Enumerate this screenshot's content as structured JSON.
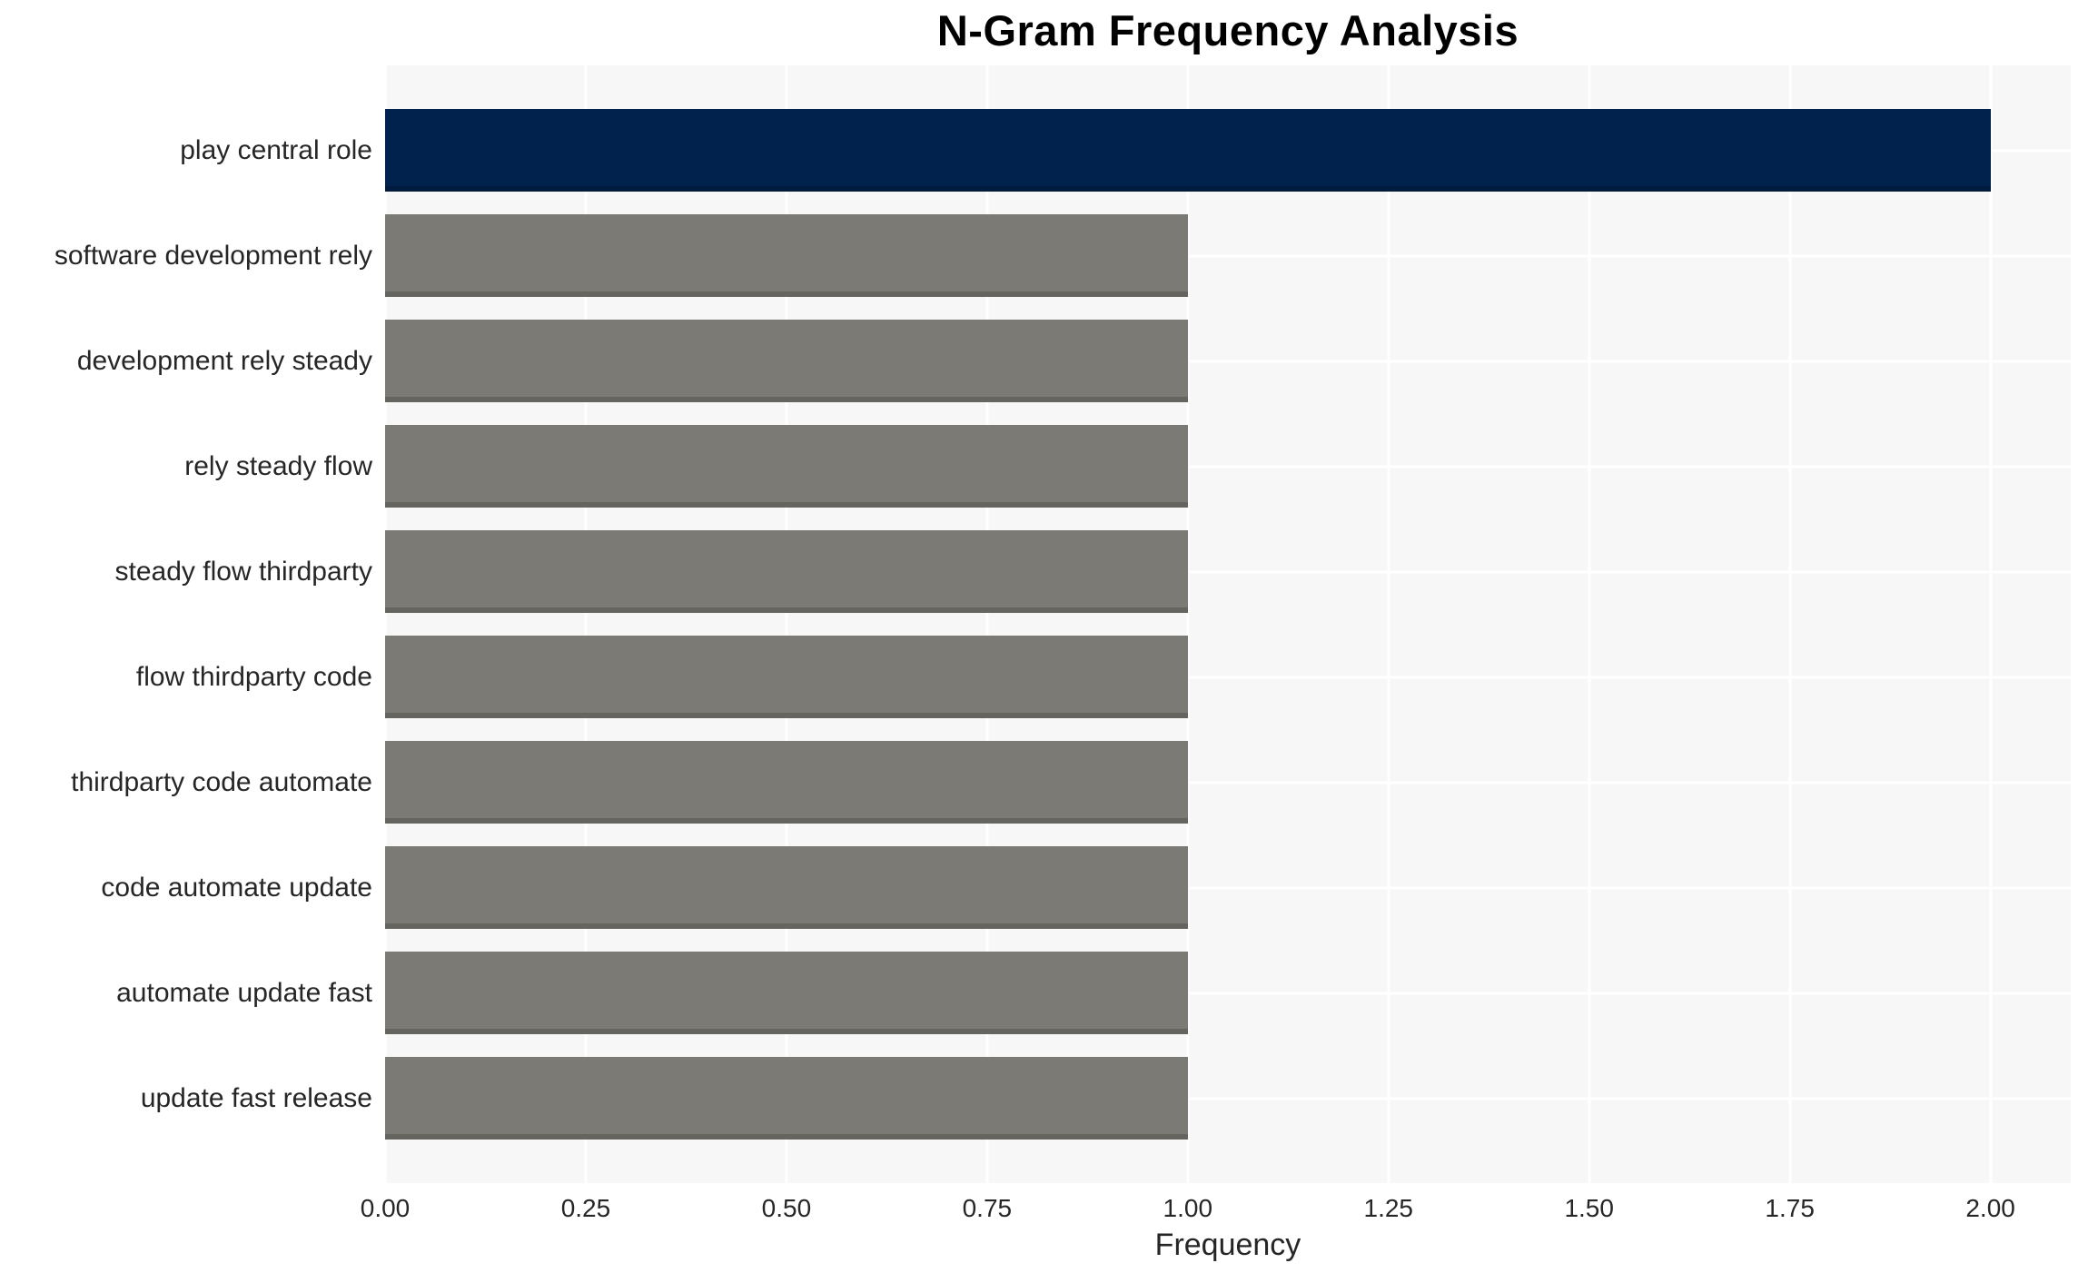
{
  "title": "N-Gram Frequency Analysis",
  "chart_data": {
    "type": "bar",
    "orientation": "horizontal",
    "title": "N-Gram Frequency Analysis",
    "categories": [
      "play central role",
      "software development rely",
      "development rely steady",
      "rely steady flow",
      "steady flow thirdparty",
      "flow thirdparty code",
      "thirdparty code automate",
      "code automate update",
      "automate update fast",
      "update fast release"
    ],
    "values": [
      2,
      1,
      1,
      1,
      1,
      1,
      1,
      1,
      1,
      1
    ],
    "xlabel": "Frequency",
    "ylabel": "",
    "xlim": [
      0,
      2.1
    ],
    "xticks": [
      "0.00",
      "0.25",
      "0.50",
      "0.75",
      "1.00",
      "1.25",
      "1.50",
      "1.75",
      "2.00"
    ],
    "xtick_values": [
      0,
      0.25,
      0.5,
      0.75,
      1.0,
      1.25,
      1.5,
      1.75,
      2.0
    ],
    "grid": true,
    "legend": false,
    "colors": {
      "highlight_bar": "#01224c",
      "default_bar": "#7c7a75",
      "plot_background": "#f7f7f7",
      "gridline": "#ffffff",
      "text": "#262626",
      "title_text": "#000000"
    }
  }
}
